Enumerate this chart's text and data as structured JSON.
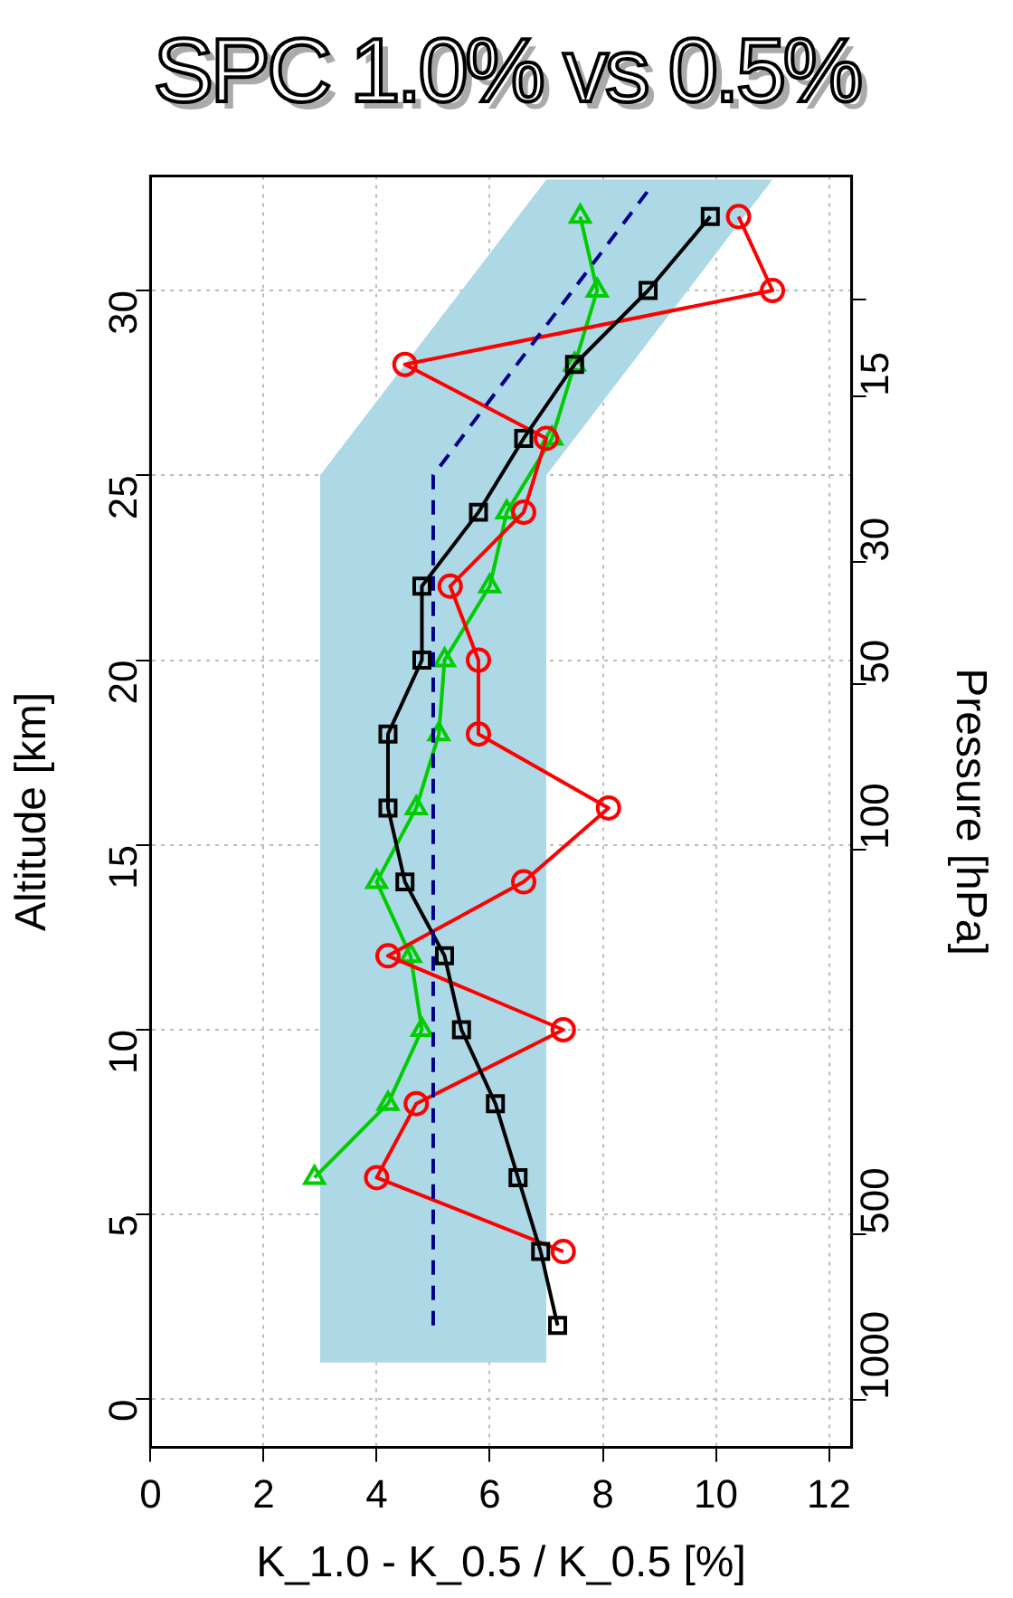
{
  "chart_data": {
    "type": "line",
    "title": "SPC 1.0% vs 0.5%",
    "xlabel": "K_1.0 - K_0.5 / K_0.5 [%]",
    "ylabel": "Altitude [km]",
    "y2label": "Pressure [hPa]",
    "xlim": [
      0,
      12.4
    ],
    "xticks": [
      0,
      2,
      4,
      6,
      8,
      10,
      12
    ],
    "ylim": [
      -1.3,
      33.1
    ],
    "yticks": [
      0,
      5,
      10,
      15,
      20,
      25,
      30
    ],
    "y2lim": [
      1222,
      5.97
    ],
    "y2ticks": [
      {
        "value": 10,
        "label": null
      },
      15,
      30,
      50,
      100,
      500,
      1000
    ],
    "grid": true,
    "log": "y2",
    "legend": false,
    "series": [
      {
        "type": "area",
        "color": "#add8e6",
        "x": [
          3,
          3,
          7,
          11,
          7,
          7
        ],
        "values": [
          1,
          25,
          33,
          33,
          25,
          1
        ]
      },
      {
        "color": "#00008b",
        "line_style": "dashed",
        "marker": "none",
        "x": [
          5,
          5,
          8.8
        ],
        "values": [
          2,
          25,
          32.7
        ]
      },
      {
        "color": "#000000",
        "marker": "square",
        "line_style": "solid",
        "x": [
          7.2,
          6.9,
          6.5,
          6.1,
          5.5,
          5.2,
          4.5,
          4.2,
          4.2,
          4.8,
          4.8,
          5.8,
          6.6,
          7.5,
          8.8,
          9.9
        ],
        "values": [
          2,
          4,
          6,
          8,
          10,
          12,
          14,
          16,
          18,
          20,
          22,
          24,
          26,
          28,
          30,
          32
        ]
      },
      {
        "color": "#ff0000",
        "marker": "circle",
        "line_style": "solid",
        "x": [
          7.3,
          4.0,
          4.7,
          7.3,
          4.2,
          6.6,
          8.1,
          5.8,
          5.8,
          5.3,
          6.6,
          7.0,
          4.5,
          11.0,
          10.4
        ],
        "values": [
          4,
          6,
          8,
          10,
          12,
          14,
          16,
          18,
          20,
          22,
          24,
          26,
          28,
          30,
          32
        ]
      },
      {
        "color": "#00cd00",
        "marker": "triangle",
        "line_style": "solid",
        "x": [
          2.9,
          4.2,
          4.8,
          4.6,
          4.0,
          4.7,
          5.1,
          5.2,
          6.0,
          6.3,
          7.1,
          7.5,
          7.9,
          7.6
        ],
        "values": [
          6,
          8,
          10,
          12,
          14,
          16,
          18,
          20,
          22,
          24,
          26,
          28,
          30,
          32
        ]
      }
    ]
  }
}
